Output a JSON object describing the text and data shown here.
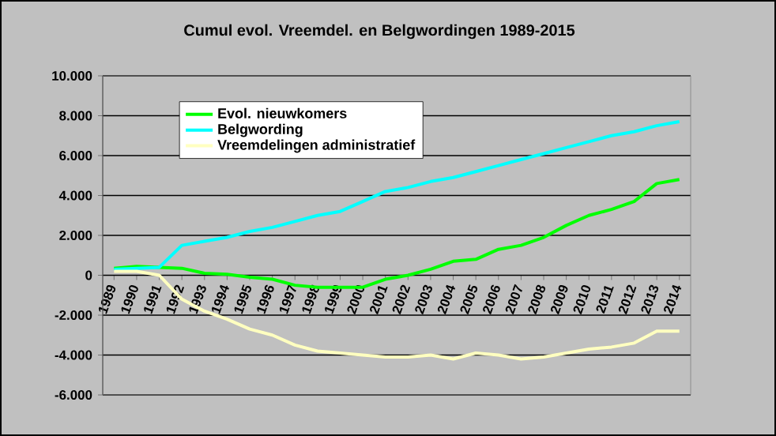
{
  "chart_data": {
    "type": "line",
    "title": "Cumul evol. Vreemdel. en Belgwordingen 1989-2015",
    "categories": [
      "1989",
      "1990",
      "1991",
      "1992",
      "1993",
      "1994",
      "1995",
      "1996",
      "1997",
      "1998",
      "1999",
      "2000",
      "2001",
      "2002",
      "2003",
      "2004",
      "2005",
      "2006",
      "2007",
      "2008",
      "2009",
      "2010",
      "2011",
      "2012",
      "2013",
      "2014"
    ],
    "series": [
      {
        "name": "Evol. nieuwkomers",
        "color": "#00ff00",
        "values": [
          350,
          450,
          400,
          350,
          100,
          50,
          -100,
          -200,
          -500,
          -600,
          -600,
          -600,
          -200,
          0,
          300,
          700,
          800,
          1300,
          1500,
          1900,
          2500,
          3000,
          3300,
          3700,
          4600,
          4800
        ]
      },
      {
        "name": "Belgwording",
        "color": "#00ffff",
        "values": [
          300,
          350,
          400,
          1500,
          1700,
          1900,
          2200,
          2400,
          2700,
          3000,
          3200,
          3700,
          4200,
          4400,
          4700,
          4900,
          5200,
          5500,
          5800,
          6100,
          6400,
          6700,
          7000,
          7200,
          7500,
          7700
        ]
      },
      {
        "name": "Vreemdelingen administratief",
        "color": "#ffffc0",
        "values": [
          200,
          200,
          0,
          -1200,
          -1800,
          -2200,
          -2700,
          -3000,
          -3500,
          -3800,
          -3900,
          -4000,
          -4100,
          -4100,
          -4000,
          -4200,
          -3900,
          -4000,
          -4200,
          -4100,
          -3900,
          -3700,
          -3600,
          -3400,
          -2800,
          -2800
        ]
      }
    ],
    "ylim": [
      -6000,
      10000
    ],
    "yticks": [
      {
        "value": -6000,
        "label": "-6.000"
      },
      {
        "value": -4000,
        "label": "-4.000"
      },
      {
        "value": -2000,
        "label": "-2.000"
      },
      {
        "value": 0,
        "label": "0"
      },
      {
        "value": 2000,
        "label": "2.000"
      },
      {
        "value": 4000,
        "label": "4.000"
      },
      {
        "value": 6000,
        "label": "6.000"
      },
      {
        "value": 8000,
        "label": "8.000"
      },
      {
        "value": 10000,
        "label": "10.000"
      }
    ],
    "grid": "y",
    "legend": "top left",
    "marker": "none",
    "line_style": "solid"
  }
}
